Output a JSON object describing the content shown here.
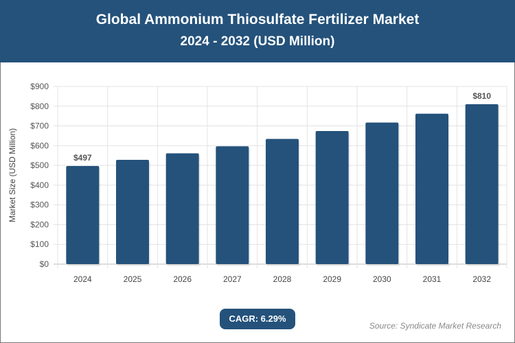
{
  "header": {
    "title": "Global Ammonium Thiosulfate Fertilizer Market",
    "subtitle": "2024 - 2032 (USD Million)"
  },
  "chart_data": {
    "type": "bar",
    "title": "Global Ammonium Thiosulfate Fertilizer Market",
    "subtitle": "2024 - 2032 (USD Million)",
    "xlabel": "",
    "ylabel": "Market Size (USD Million)",
    "categories": [
      "2024",
      "2025",
      "2026",
      "2027",
      "2028",
      "2029",
      "2030",
      "2031",
      "2032"
    ],
    "values": [
      497,
      528,
      561,
      597,
      634,
      674,
      717,
      762,
      810
    ],
    "data_labels": {
      "0": "$497",
      "8": "$810"
    },
    "ylim": [
      0,
      900
    ],
    "yticks": [
      "$0",
      "$100",
      "$200",
      "$300",
      "$400",
      "$500",
      "$600",
      "$700",
      "$800",
      "$900"
    ],
    "grid": true,
    "bar_color": "#24527b"
  },
  "cagr": "CAGR: 6.29%",
  "source": "Source: Syndicate Market Research"
}
